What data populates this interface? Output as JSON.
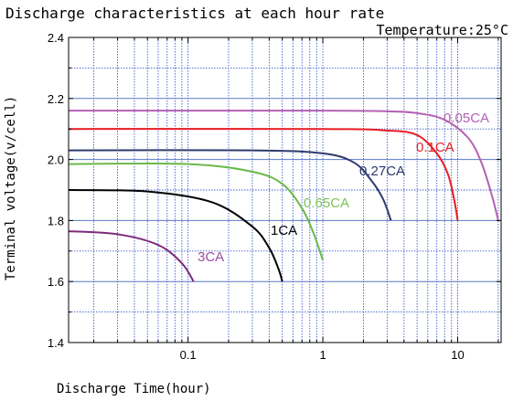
{
  "chart_data": {
    "type": "line",
    "title": "Discharge characteristics at each hour rate",
    "annotation": "Temperature:25°C",
    "xlabel": "Discharge Time(hour)",
    "ylabel": "Terminal voltage(v/cell)",
    "xscale": "log",
    "xlim": [
      0.013,
      21
    ],
    "ylim": [
      1.4,
      2.4
    ],
    "x_ticks": [
      0.1,
      1,
      10
    ],
    "x_tick_labels": [
      "0.1",
      "1",
      "10"
    ],
    "y_ticks": [
      1.4,
      1.6,
      1.8,
      2.0,
      2.2,
      2.4
    ],
    "y_tick_labels": [
      "1.4",
      "1.6",
      "1.8",
      "2.0",
      "2.2",
      "2.4"
    ],
    "grid": true,
    "series": [
      {
        "name": "0.05CA",
        "color": "#b561b5",
        "x": [
          0.013,
          1,
          3,
          5,
          8,
          12,
          15,
          18,
          20
        ],
        "y": [
          2.16,
          2.16,
          2.158,
          2.152,
          2.13,
          2.07,
          1.99,
          1.88,
          1.8
        ]
      },
      {
        "name": "0.1CA",
        "color": "#e81c24",
        "x": [
          0.013,
          1,
          3,
          5,
          7,
          8.5,
          9.5,
          10
        ],
        "y": [
          2.1,
          2.1,
          2.095,
          2.08,
          2.02,
          1.95,
          1.86,
          1.8
        ]
      },
      {
        "name": "0.27CA",
        "color": "#2d3a6e",
        "x": [
          0.013,
          0.3,
          1,
          1.7,
          2.3,
          2.8,
          3.2
        ],
        "y": [
          2.03,
          2.03,
          2.02,
          1.99,
          1.93,
          1.87,
          1.8
        ]
      },
      {
        "name": "0.65CA",
        "color": "#6ab84a",
        "x": [
          0.013,
          0.1,
          0.3,
          0.5,
          0.7,
          0.85,
          1.0
        ],
        "y": [
          1.985,
          1.985,
          1.96,
          1.92,
          1.84,
          1.76,
          1.67
        ]
      },
      {
        "name": "1CA",
        "color": "#000000",
        "x": [
          0.013,
          0.05,
          0.15,
          0.3,
          0.4,
          0.47,
          0.5
        ],
        "y": [
          1.9,
          1.895,
          1.86,
          1.78,
          1.71,
          1.64,
          1.6
        ]
      },
      {
        "name": "3CA",
        "color": "#7d2a7c",
        "x": [
          0.013,
          0.03,
          0.06,
          0.09,
          0.11
        ],
        "y": [
          1.765,
          1.755,
          1.72,
          1.66,
          1.6
        ]
      }
    ],
    "series_label_colors": {
      "0.05CA": "#b561b5",
      "0.1CA": "#e81c24",
      "0.27CA": "#2d3a6e",
      "0.65CA": "#7cc35a",
      "1CA": "#000000",
      "3CA": "#9b4fa0"
    }
  }
}
